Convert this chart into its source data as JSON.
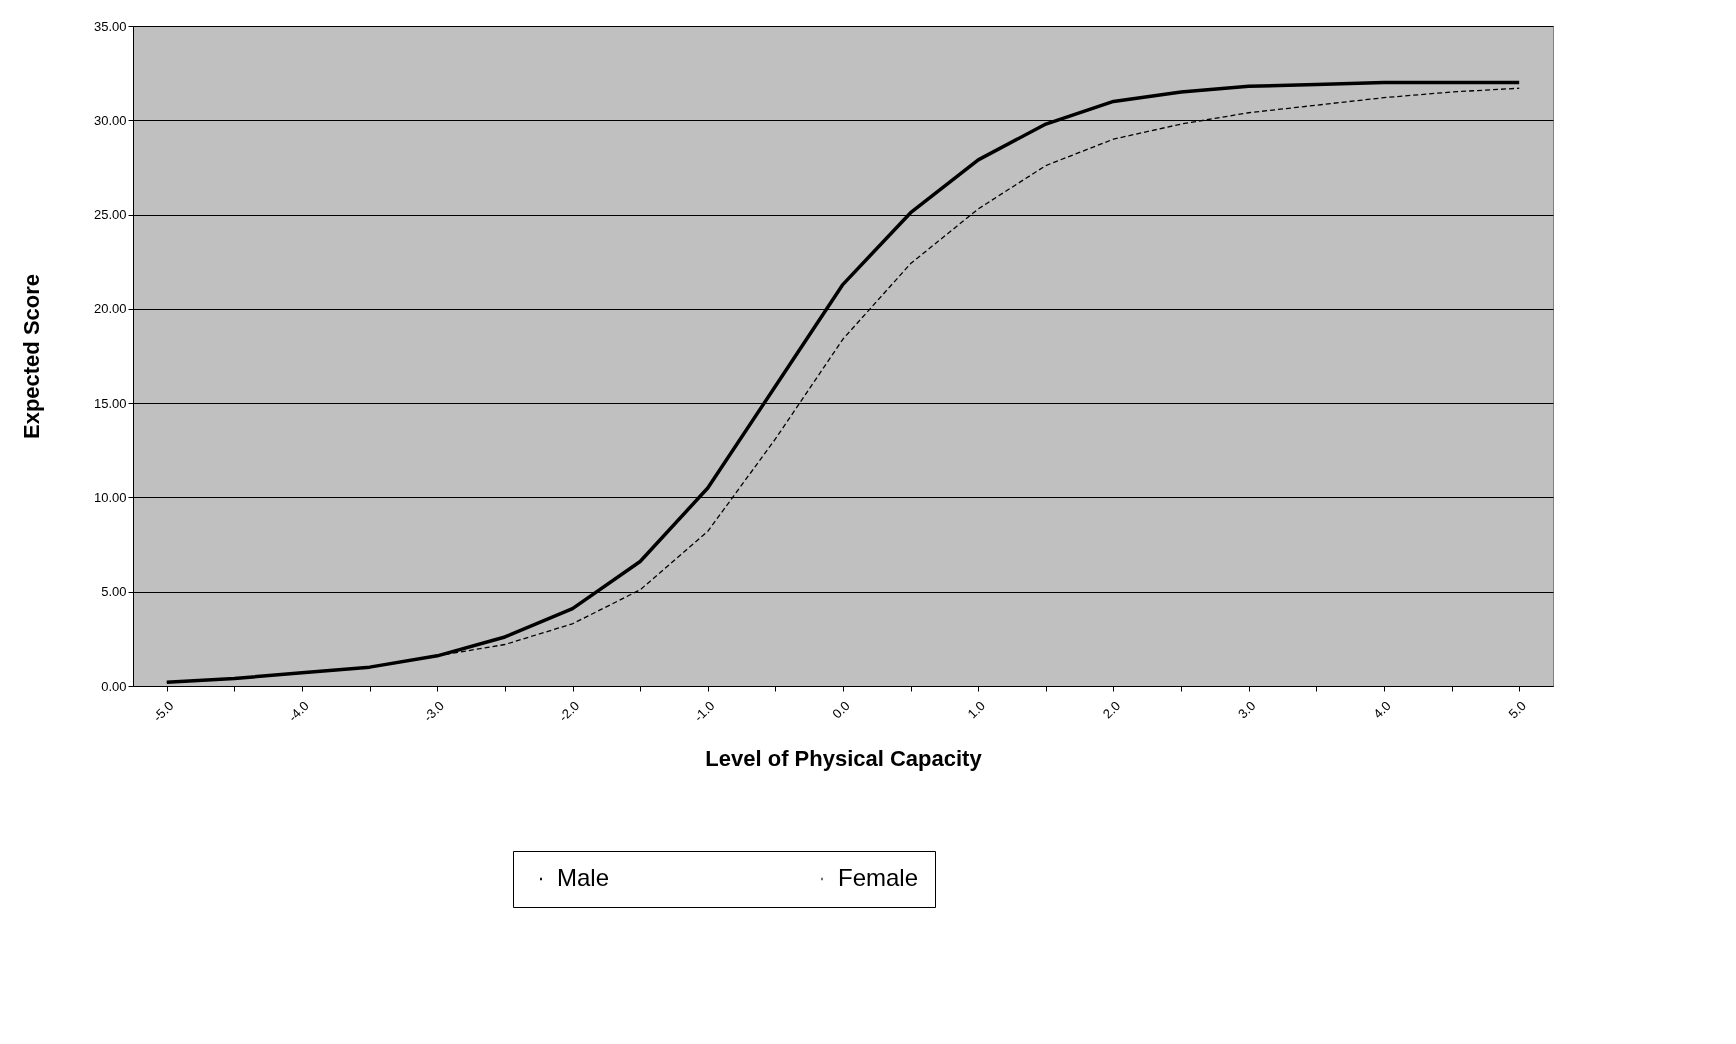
{
  "chart_data": {
    "type": "line",
    "xlabel": "Level of Physical Capacity",
    "ylabel": "Expected Score",
    "categories": [
      "-5.0",
      null,
      "-4.0",
      null,
      "-3.0",
      null,
      "-2.0",
      null,
      "-1.0",
      null,
      "0.0",
      null,
      "1.0",
      null,
      "2.0",
      null,
      "3.0",
      null,
      "4.0",
      null,
      "5.0"
    ],
    "series": [
      {
        "name": "Male",
        "color": "#000000",
        "line_style": "solid",
        "values": [
          0.2,
          0.4,
          0.7,
          1.0,
          1.6,
          2.6,
          4.1,
          6.6,
          10.5,
          15.9,
          21.3,
          25.1,
          27.9,
          29.8,
          31.0,
          31.5,
          31.8,
          31.9,
          32.0,
          32.0,
          32.0
        ]
      },
      {
        "name": "Female",
        "color": "#000000",
        "line_style": "dashed",
        "values": [
          0.2,
          0.4,
          0.7,
          1.0,
          1.6,
          2.2,
          3.3,
          5.1,
          8.2,
          13.1,
          18.4,
          22.4,
          25.3,
          27.6,
          29.0,
          29.8,
          30.4,
          30.8,
          31.2,
          31.5,
          31.7
        ]
      }
    ],
    "ylim": [
      0,
      35
    ],
    "yticks": [
      {
        "value": 0,
        "label": "0.00"
      },
      {
        "value": 5,
        "label": "5.00"
      },
      {
        "value": 10,
        "label": "10.00"
      },
      {
        "value": 15,
        "label": "15.00"
      },
      {
        "value": 20,
        "label": "20.00"
      },
      {
        "value": 25,
        "label": "25.00"
      },
      {
        "value": 30,
        "label": "30.00"
      },
      {
        "value": 35,
        "label": "35.00"
      }
    ],
    "grid": "y",
    "legend": "bottom"
  }
}
